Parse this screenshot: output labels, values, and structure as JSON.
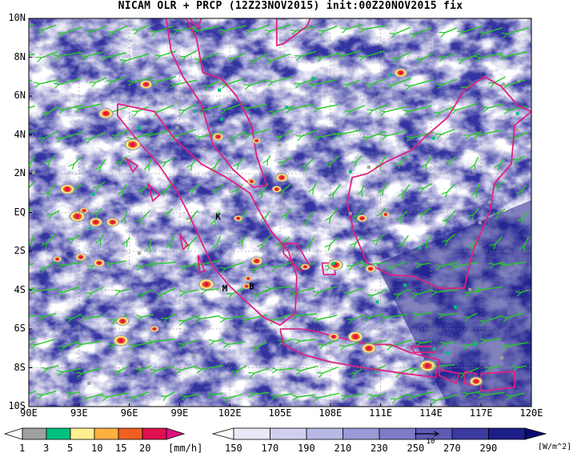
{
  "title": "NICAM OLR + PRCP (12Z23NOV2015) init:00Z20NOV2015 fix",
  "map": {
    "lat_labels": [
      "10N",
      "8N",
      "6N",
      "4N",
      "2N",
      "EQ",
      "2S",
      "4S",
      "6S",
      "8S",
      "10S"
    ],
    "lon_labels": [
      "90E",
      "93E",
      "96E",
      "99E",
      "102E",
      "105E",
      "108E",
      "111E",
      "114E",
      "117E",
      "120E"
    ],
    "station_markers": [
      {
        "label": "K",
        "lon": 101.3,
        "lat": -0.2
      },
      {
        "label": "M",
        "lon": 101.7,
        "lat": -3.9
      },
      {
        "label": "B",
        "lon": 103.3,
        "lat": -3.8
      }
    ],
    "grid": "dotted",
    "coastline_color": "#e0207f",
    "wind_vector_color": "#22cc22"
  },
  "precip_scale": {
    "unit": "[mm/h]",
    "levels": [
      "1",
      "3",
      "5",
      "10",
      "15",
      "20"
    ],
    "colors": [
      "#a0a0a0",
      "#00c080",
      "#ffef90",
      "#ffb040",
      "#f06020",
      "#e01050",
      "#e01080"
    ]
  },
  "olr_scale": {
    "unit": "[W/m^2]",
    "levels": [
      "150",
      "170",
      "190",
      "210",
      "230",
      "250",
      "270",
      "290"
    ],
    "colors": [
      "#ffffff",
      "#e8e8f6",
      "#d0d0ee",
      "#b8b8e4",
      "#9a9ad6",
      "#7c7cc8",
      "#5c5cb6",
      "#3a3aa0",
      "#1e1e88",
      "#0a0a70"
    ]
  },
  "vector_reference": "10"
}
